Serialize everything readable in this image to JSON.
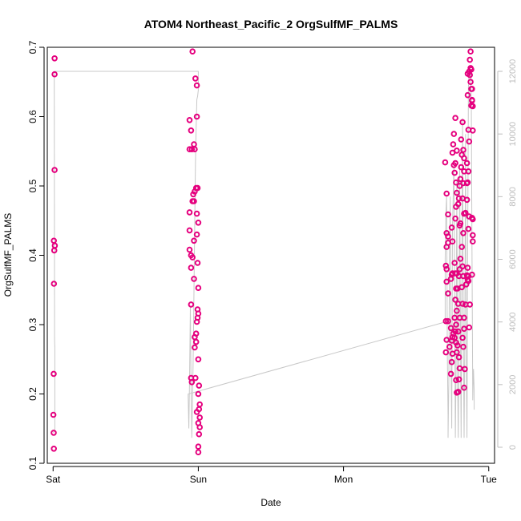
{
  "chart_data": {
    "type": "scatter",
    "title": "ATOM4 Northeast_Pacific_2 OrgSulfMF_PALMS",
    "xlabel": "Date",
    "ylabel": "OrgSulfMF_PALMS",
    "x_tick_labels": [
      "Sat",
      "Sun",
      "Mon",
      "Tue"
    ],
    "x_tick_values": [
      0,
      1,
      2,
      3
    ],
    "xlim": [
      -0.04,
      3.04
    ],
    "ylim": [
      0.1,
      0.7
    ],
    "y_ticks": [
      0.1,
      0.2,
      0.3,
      0.4,
      0.5,
      0.6,
      0.7
    ],
    "y_tick_labels": [
      "0.1",
      "0.2",
      "0.3",
      "0.4",
      "0.5",
      "0.6",
      "0.7"
    ],
    "y2lim": [
      0,
      12000
    ],
    "y2_ticks": [
      0,
      2000,
      4000,
      6000,
      8000,
      10000,
      12000
    ],
    "y2_tick_labels": [
      "0",
      "2000",
      "4000",
      "6000",
      "8000",
      "10000",
      "12000"
    ],
    "grid": false,
    "colors": {
      "points": "#e5007e",
      "secondary_line": "#c8c8c8",
      "secondary_axis": "#bdbdbd"
    },
    "series": [
      {
        "values": [
          [
            0.01,
            0.684
          ],
          [
            0.01,
            0.661
          ],
          [
            0.01,
            0.523
          ],
          [
            0.005,
            0.421
          ],
          [
            0.012,
            0.414
          ],
          [
            0.008,
            0.407
          ],
          [
            0.006,
            0.359
          ],
          [
            0.004,
            0.229
          ],
          [
            0.002,
            0.17
          ],
          [
            0.004,
            0.144
          ],
          [
            0.005,
            0.121
          ],
          [
            0.96,
            0.694
          ],
          [
            0.98,
            0.655
          ],
          [
            0.99,
            0.645
          ],
          [
            0.99,
            0.6
          ],
          [
            0.94,
            0.595
          ],
          [
            0.95,
            0.58
          ],
          [
            0.97,
            0.56
          ],
          [
            0.975,
            0.553
          ],
          [
            0.955,
            0.553
          ],
          [
            0.94,
            0.553
          ],
          [
            0.995,
            0.497
          ],
          [
            0.985,
            0.497
          ],
          [
            0.975,
            0.492
          ],
          [
            0.965,
            0.488
          ],
          [
            0.97,
            0.478
          ],
          [
            0.96,
            0.478
          ],
          [
            0.94,
            0.462
          ],
          [
            0.99,
            0.46
          ],
          [
            1.0,
            0.447
          ],
          [
            0.94,
            0.436
          ],
          [
            0.99,
            0.43
          ],
          [
            0.97,
            0.421
          ],
          [
            0.94,
            0.408
          ],
          [
            0.95,
            0.4
          ],
          [
            0.96,
            0.397
          ],
          [
            0.995,
            0.389
          ],
          [
            0.95,
            0.382
          ],
          [
            0.97,
            0.366
          ],
          [
            1.0,
            0.353
          ],
          [
            0.95,
            0.329
          ],
          [
            0.995,
            0.322
          ],
          [
            1.0,
            0.316
          ],
          [
            0.995,
            0.31
          ],
          [
            0.99,
            0.304
          ],
          [
            0.985,
            0.287
          ],
          [
            0.975,
            0.282
          ],
          [
            0.985,
            0.275
          ],
          [
            0.975,
            0.267
          ],
          [
            1.0,
            0.25
          ],
          [
            0.98,
            0.223
          ],
          [
            0.95,
            0.223
          ],
          [
            0.955,
            0.217
          ],
          [
            1.005,
            0.212
          ],
          [
            1.0,
            0.2
          ],
          [
            1.01,
            0.185
          ],
          [
            1.005,
            0.178
          ],
          [
            0.99,
            0.174
          ],
          [
            1.01,
            0.166
          ],
          [
            1.0,
            0.158
          ],
          [
            1.01,
            0.152
          ],
          [
            1.005,
            0.142
          ],
          [
            1.0,
            0.124
          ],
          [
            1.0,
            0.116
          ],
          [
            2.7,
            0.534
          ],
          [
            2.71,
            0.489
          ],
          [
            2.72,
            0.459
          ],
          [
            2.71,
            0.432
          ],
          [
            2.72,
            0.427
          ],
          [
            2.71,
            0.412
          ],
          [
            2.72,
            0.418
          ],
          [
            2.705,
            0.385
          ],
          [
            2.71,
            0.38
          ],
          [
            2.71,
            0.362
          ],
          [
            2.72,
            0.345
          ],
          [
            2.705,
            0.305
          ],
          [
            2.72,
            0.305
          ],
          [
            2.71,
            0.278
          ],
          [
            2.705,
            0.26
          ],
          [
            2.73,
            0.268
          ],
          [
            2.74,
            0.229
          ],
          [
            2.745,
            0.246
          ],
          [
            2.75,
            0.258
          ],
          [
            2.745,
            0.277
          ],
          [
            2.75,
            0.282
          ],
          [
            2.755,
            0.287
          ],
          [
            2.74,
            0.295
          ],
          [
            2.745,
            0.372
          ],
          [
            2.74,
            0.366
          ],
          [
            2.75,
            0.374
          ],
          [
            2.75,
            0.42
          ],
          [
            2.745,
            0.44
          ],
          [
            2.75,
            0.548
          ],
          [
            2.755,
            0.56
          ],
          [
            2.76,
            0.53
          ],
          [
            2.76,
            0.575
          ],
          [
            2.77,
            0.598
          ],
          [
            2.78,
            0.551
          ],
          [
            2.77,
            0.533
          ],
          [
            2.765,
            0.519
          ],
          [
            2.775,
            0.505
          ],
          [
            2.78,
            0.49
          ],
          [
            2.775,
            0.47
          ],
          [
            2.77,
            0.453
          ],
          [
            2.765,
            0.389
          ],
          [
            2.77,
            0.374
          ],
          [
            2.78,
            0.374
          ],
          [
            2.775,
            0.352
          ],
          [
            2.77,
            0.336
          ],
          [
            2.78,
            0.32
          ],
          [
            2.765,
            0.31
          ],
          [
            2.775,
            0.3
          ],
          [
            2.77,
            0.29
          ],
          [
            2.765,
            0.281
          ],
          [
            2.775,
            0.274
          ],
          [
            2.78,
            0.26
          ],
          [
            2.775,
            0.22
          ],
          [
            2.78,
            0.202
          ],
          [
            2.79,
            0.203
          ],
          [
            2.795,
            0.221
          ],
          [
            2.8,
            0.237
          ],
          [
            2.795,
            0.253
          ],
          [
            2.785,
            0.27
          ],
          [
            2.79,
            0.29
          ],
          [
            2.8,
            0.31
          ],
          [
            2.79,
            0.33
          ],
          [
            2.785,
            0.352
          ],
          [
            2.795,
            0.37
          ],
          [
            2.8,
            0.38
          ],
          [
            2.805,
            0.395
          ],
          [
            2.8,
            0.443
          ],
          [
            2.805,
            0.446
          ],
          [
            2.79,
            0.474
          ],
          [
            2.795,
            0.482
          ],
          [
            2.8,
            0.5
          ],
          [
            2.805,
            0.51
          ],
          [
            2.81,
            0.527
          ],
          [
            2.815,
            0.545
          ],
          [
            2.81,
            0.567
          ],
          [
            2.82,
            0.592
          ],
          [
            2.825,
            0.552
          ],
          [
            2.83,
            0.54
          ],
          [
            2.83,
            0.521
          ],
          [
            2.825,
            0.504
          ],
          [
            2.82,
            0.482
          ],
          [
            2.83,
            0.46
          ],
          [
            2.825,
            0.432
          ],
          [
            2.815,
            0.412
          ],
          [
            2.82,
            0.384
          ],
          [
            2.825,
            0.37
          ],
          [
            2.815,
            0.354
          ],
          [
            2.82,
            0.33
          ],
          [
            2.83,
            0.31
          ],
          [
            2.83,
            0.294
          ],
          [
            2.82,
            0.281
          ],
          [
            2.825,
            0.268
          ],
          [
            2.83,
            0.209
          ],
          [
            2.835,
            0.236
          ],
          [
            2.84,
            0.329
          ],
          [
            2.845,
            0.358
          ],
          [
            2.85,
            0.371
          ],
          [
            2.855,
            0.382
          ],
          [
            2.86,
            0.438
          ],
          [
            2.865,
            0.456
          ],
          [
            2.85,
            0.48
          ],
          [
            2.855,
            0.505
          ],
          [
            2.86,
            0.521
          ],
          [
            2.865,
            0.564
          ],
          [
            2.86,
            0.581
          ],
          [
            2.855,
            0.631
          ],
          [
            2.855,
            0.662
          ],
          [
            2.865,
            0.665
          ],
          [
            2.87,
            0.66
          ],
          [
            2.875,
            0.694
          ],
          [
            2.87,
            0.682
          ],
          [
            2.875,
            0.67
          ],
          [
            2.88,
            0.668
          ],
          [
            2.875,
            0.65
          ],
          [
            2.885,
            0.64
          ],
          [
            2.885,
            0.623
          ],
          [
            2.89,
            0.615
          ],
          [
            2.89,
            0.58
          ],
          [
            2.88,
            0.64
          ],
          [
            2.885,
            0.624
          ],
          [
            2.88,
            0.616
          ],
          [
            2.885,
            0.454
          ],
          [
            2.89,
            0.452
          ],
          [
            2.89,
            0.429
          ],
          [
            2.89,
            0.42
          ],
          [
            2.885,
            0.372
          ],
          [
            2.86,
            0.37
          ],
          [
            2.87,
            0.329
          ],
          [
            2.865,
            0.296
          ],
          [
            2.86,
            0.363
          ],
          [
            2.855,
            0.365
          ],
          [
            2.85,
            0.533
          ],
          [
            2.85,
            0.504
          ],
          [
            2.84,
            0.461
          ]
        ]
      }
    ],
    "secondary_series": {
      "values": [
        [
          0.0,
          470
        ],
        [
          0.008,
          500
        ],
        [
          0.012,
          600
        ],
        [
          0.012,
          3200
        ],
        [
          0.01,
          3400
        ],
        [
          0.008,
          12000
        ],
        [
          0.96,
          12000
        ],
        [
          0.97,
          12000
        ],
        [
          1.0,
          12000
        ],
        [
          1.0,
          11400
        ],
        [
          0.995,
          11200
        ],
        [
          0.99,
          11100
        ],
        [
          0.985,
          10200
        ],
        [
          0.98,
          9000
        ],
        [
          0.975,
          7000
        ],
        [
          0.97,
          5000
        ],
        [
          0.965,
          3000
        ],
        [
          0.96,
          1500
        ],
        [
          0.955,
          300
        ],
        [
          0.95,
          1800
        ],
        [
          0.945,
          4500
        ],
        [
          0.94,
          2200
        ],
        [
          0.935,
          600
        ],
        [
          0.93,
          1700
        ],
        [
          2.7,
          4000
        ],
        [
          2.7,
          6000
        ],
        [
          2.705,
          7500
        ],
        [
          2.71,
          8000
        ],
        [
          2.715,
          3000
        ],
        [
          2.72,
          1000
        ],
        [
          2.72,
          300
        ],
        [
          2.725,
          2000
        ],
        [
          2.73,
          6000
        ],
        [
          2.735,
          8000
        ],
        [
          2.74,
          3000
        ],
        [
          2.745,
          600
        ],
        [
          2.75,
          7000
        ],
        [
          2.76,
          9000
        ],
        [
          2.765,
          5000
        ],
        [
          2.77,
          300
        ],
        [
          2.775,
          2500
        ],
        [
          2.78,
          8500
        ],
        [
          2.785,
          2500
        ],
        [
          2.79,
          300
        ],
        [
          2.795,
          3000
        ],
        [
          2.8,
          9000
        ],
        [
          2.805,
          4000
        ],
        [
          2.81,
          300
        ],
        [
          2.815,
          5500
        ],
        [
          2.82,
          10500
        ],
        [
          2.825,
          4000
        ],
        [
          2.83,
          300
        ],
        [
          2.835,
          3500
        ],
        [
          2.84,
          10000
        ],
        [
          2.845,
          3000
        ],
        [
          2.85,
          300
        ],
        [
          2.855,
          6500
        ],
        [
          2.86,
          11500
        ],
        [
          2.865,
          12000
        ],
        [
          2.87,
          11800
        ],
        [
          2.875,
          12000
        ],
        [
          2.88,
          11000
        ],
        [
          2.885,
          6000
        ],
        [
          2.89,
          1500
        ],
        [
          2.895,
          2500
        ],
        [
          2.9,
          1800
        ],
        [
          2.9,
          1200
        ]
      ]
    }
  }
}
